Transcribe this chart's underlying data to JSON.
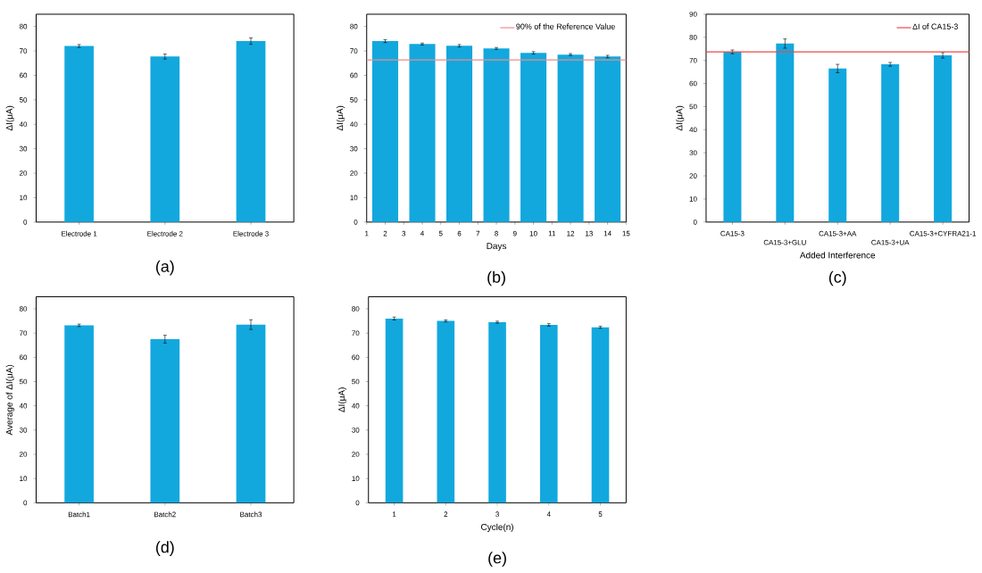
{
  "chart_data": [
    {
      "type": "bar",
      "categories": [
        "Electrode 1",
        "Electrode 2",
        "Electrode 3"
      ],
      "values": [
        72,
        67.7,
        74
      ],
      "errors": [
        0.6,
        1,
        1.3
      ],
      "color": "#12a8de",
      "ylim": [
        0,
        85
      ],
      "yticks": [
        0,
        10,
        20,
        30,
        40,
        50,
        60,
        70,
        80
      ],
      "ylabel": "ΔI(μA)",
      "annotations": [
        "(a)"
      ]
    },
    {
      "type": "bar",
      "x": [
        2,
        4,
        6,
        8,
        10,
        12,
        14
      ],
      "values": [
        74,
        72.8,
        72.1,
        71,
        69.2,
        68.5,
        67.7
      ],
      "errors": [
        0.6,
        0.4,
        0.5,
        0.4,
        0.5,
        0.4,
        0.5
      ],
      "color": "#12a8de",
      "xlim": [
        1,
        15
      ],
      "xticks": [
        1,
        2,
        3,
        4,
        5,
        6,
        7,
        8,
        9,
        10,
        11,
        12,
        13,
        14,
        15
      ],
      "ylim": [
        0,
        85
      ],
      "yticks": [
        0,
        10,
        20,
        30,
        40,
        50,
        60,
        70,
        80
      ],
      "xlabel": "Days",
      "ylabel": "ΔI(μA)",
      "legend": "top right",
      "ref_lines": [
        {
          "axis": "y",
          "value": 66.3,
          "label": "90% of the Reference Value",
          "color": "#f08a8a"
        }
      ],
      "annotations": [
        "(b)"
      ]
    },
    {
      "type": "bar",
      "categories": [
        "CA15-3",
        "CA15-3+GLU",
        "CA15-3+AA",
        "CA15-3+UA",
        "CA15-3+CYFRA21-1"
      ],
      "values": [
        73.7,
        77.3,
        66.5,
        68.3,
        72.2
      ],
      "errors": [
        0.8,
        2,
        1.8,
        0.8,
        1.2
      ],
      "color": "#12a8de",
      "ylim": [
        0,
        90
      ],
      "yticks": [
        0,
        10,
        20,
        30,
        40,
        50,
        60,
        70,
        80,
        90
      ],
      "xlabel": "Added Interference",
      "ylabel": "ΔI(μA)",
      "legend": "top right",
      "ref_lines": [
        {
          "axis": "y",
          "value": 73.7,
          "label": "ΔI of CA15-3",
          "color": "#f04848"
        }
      ],
      "annotations": [
        "(c)"
      ]
    },
    {
      "type": "bar",
      "categories": [
        "Batch1",
        "Batch2",
        "Batch3"
      ],
      "values": [
        73.2,
        67.5,
        73.5
      ],
      "errors": [
        0.5,
        1.6,
        2
      ],
      "color": "#12a8de",
      "ylim": [
        0,
        85
      ],
      "yticks": [
        0,
        10,
        20,
        30,
        40,
        50,
        60,
        70,
        80
      ],
      "ylabel": "Average of ΔI(μA)",
      "annotations": [
        "(d)"
      ]
    },
    {
      "type": "bar",
      "categories": [
        "1",
        "2",
        "3",
        "4",
        "5"
      ],
      "values": [
        76,
        75,
        74.5,
        73.4,
        72.4
      ],
      "errors": [
        0.6,
        0.4,
        0.4,
        0.5,
        0.4
      ],
      "color": "#12a8de",
      "ylim": [
        0,
        85
      ],
      "yticks": [
        0,
        10,
        20,
        30,
        40,
        50,
        60,
        70,
        80
      ],
      "xlabel": "Cycle(n)",
      "ylabel": "ΔI(μA)",
      "annotations": [
        "(e)"
      ]
    }
  ]
}
